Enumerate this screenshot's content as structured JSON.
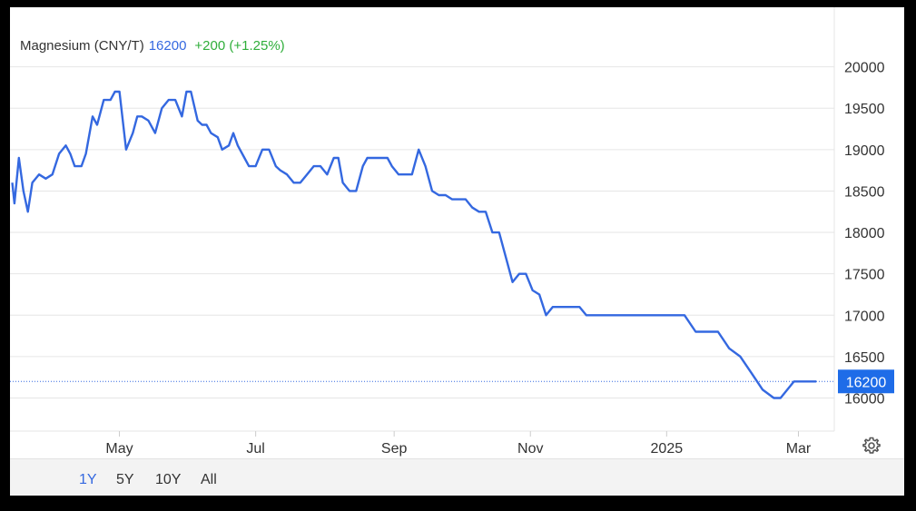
{
  "header": {
    "name": "Magnesium (CNY/T)",
    "price": "16200",
    "change": "+200 (+1.25%)"
  },
  "colors": {
    "line": "#3468e0",
    "change_positive": "#2fae3a",
    "last_price_tag": "#1e6ce8",
    "grid": "#e6e6e6"
  },
  "range_buttons": [
    {
      "label": "1Y",
      "active": true
    },
    {
      "label": "5Y",
      "active": false
    },
    {
      "label": "10Y",
      "active": false
    },
    {
      "label": "All",
      "active": false
    }
  ],
  "settings_icon": "gear-icon",
  "chart_data": {
    "type": "line",
    "title": "Magnesium (CNY/T)",
    "xlabel": "",
    "ylabel": "",
    "ylim": [
      15600,
      20500
    ],
    "y_ticks": [
      "20000",
      "19500",
      "19000",
      "18500",
      "18000",
      "17500",
      "17000",
      "16500",
      "16000"
    ],
    "y_tick_values": [
      20000,
      19500,
      19000,
      18500,
      18000,
      17500,
      17000,
      16500,
      16000
    ],
    "x_ticks": [
      "May",
      "Jul",
      "Sep",
      "Nov",
      "2025",
      "Mar"
    ],
    "x_tick_dates": [
      "2024-05-01",
      "2024-07-01",
      "2024-09-01",
      "2024-11-01",
      "2025-01-01",
      "2025-03-01"
    ],
    "grid": true,
    "last_value": 16200,
    "last_value_label": "16200",
    "series": [
      {
        "x": [
          "2024-03-14",
          "2024-03-15",
          "2024-03-17",
          "2024-03-19",
          "2024-03-21",
          "2024-03-23",
          "2024-03-26",
          "2024-03-29",
          "2024-04-01",
          "2024-04-04",
          "2024-04-07",
          "2024-04-09",
          "2024-04-11",
          "2024-04-14",
          "2024-04-16",
          "2024-04-19",
          "2024-04-21",
          "2024-04-24",
          "2024-04-27",
          "2024-04-29",
          "2024-05-01",
          "2024-05-04",
          "2024-05-07",
          "2024-05-09",
          "2024-05-11",
          "2024-05-14",
          "2024-05-17",
          "2024-05-20",
          "2024-05-23",
          "2024-05-26",
          "2024-05-29",
          "2024-05-31",
          "2024-06-02",
          "2024-06-05",
          "2024-06-07",
          "2024-06-09",
          "2024-06-11",
          "2024-06-14",
          "2024-06-16",
          "2024-06-19",
          "2024-06-21",
          "2024-06-23",
          "2024-06-26",
          "2024-06-28",
          "2024-07-01",
          "2024-07-04",
          "2024-07-07",
          "2024-07-10",
          "2024-07-12",
          "2024-07-15",
          "2024-07-18",
          "2024-07-21",
          "2024-07-24",
          "2024-07-27",
          "2024-07-30",
          "2024-08-02",
          "2024-08-05",
          "2024-08-07",
          "2024-08-09",
          "2024-08-12",
          "2024-08-15",
          "2024-08-18",
          "2024-08-20",
          "2024-08-23",
          "2024-08-26",
          "2024-08-29",
          "2024-08-31",
          "2024-09-03",
          "2024-09-06",
          "2024-09-09",
          "2024-09-12",
          "2024-09-15",
          "2024-09-18",
          "2024-09-21",
          "2024-09-24",
          "2024-09-27",
          "2024-09-30",
          "2024-10-03",
          "2024-10-06",
          "2024-10-09",
          "2024-10-12",
          "2024-10-15",
          "2024-10-18",
          "2024-10-21",
          "2024-10-24",
          "2024-10-27",
          "2024-10-30",
          "2024-11-02",
          "2024-11-05",
          "2024-11-08",
          "2024-11-11",
          "2024-11-14",
          "2024-11-17",
          "2024-11-20",
          "2024-11-23",
          "2024-11-26",
          "2024-11-29",
          "2024-12-02",
          "2024-12-06",
          "2024-12-10",
          "2024-12-14",
          "2024-12-18",
          "2024-12-22",
          "2024-12-26",
          "2024-12-30",
          "2025-01-04",
          "2025-01-09",
          "2025-01-14",
          "2025-01-19",
          "2025-01-24",
          "2025-01-29",
          "2025-02-03",
          "2025-02-08",
          "2025-02-13",
          "2025-02-18",
          "2025-02-21",
          "2025-02-24",
          "2025-02-27",
          "2025-03-02",
          "2025-03-05",
          "2025-03-07",
          "2025-03-09"
        ],
        "y": [
          18600,
          18350,
          18900,
          18500,
          18250,
          18600,
          18700,
          18650,
          18700,
          18950,
          19050,
          18950,
          18800,
          18800,
          18950,
          19400,
          19300,
          19600,
          19600,
          19700,
          19700,
          19000,
          19200,
          19400,
          19400,
          19350,
          19200,
          19500,
          19600,
          19600,
          19400,
          19700,
          19700,
          19350,
          19300,
          19300,
          19200,
          19150,
          19000,
          19050,
          19200,
          19050,
          18900,
          18800,
          18800,
          19000,
          19000,
          18800,
          18750,
          18700,
          18600,
          18600,
          18700,
          18800,
          18800,
          18700,
          18900,
          18900,
          18600,
          18500,
          18500,
          18800,
          18900,
          18900,
          18900,
          18900,
          18800,
          18700,
          18700,
          18700,
          19000,
          18800,
          18500,
          18450,
          18450,
          18400,
          18400,
          18400,
          18300,
          18250,
          18250,
          18000,
          18000,
          17700,
          17400,
          17500,
          17500,
          17300,
          17250,
          17000,
          17100,
          17100,
          17100,
          17100,
          17100,
          17000,
          17000,
          17000,
          17000,
          17000,
          17000,
          17000,
          17000,
          17000,
          17000,
          17000,
          17000,
          16800,
          16800,
          16800,
          16600,
          16500,
          16300,
          16100,
          16000,
          16000,
          16100,
          16200,
          16200,
          16200,
          16200,
          16200
        ]
      }
    ]
  }
}
